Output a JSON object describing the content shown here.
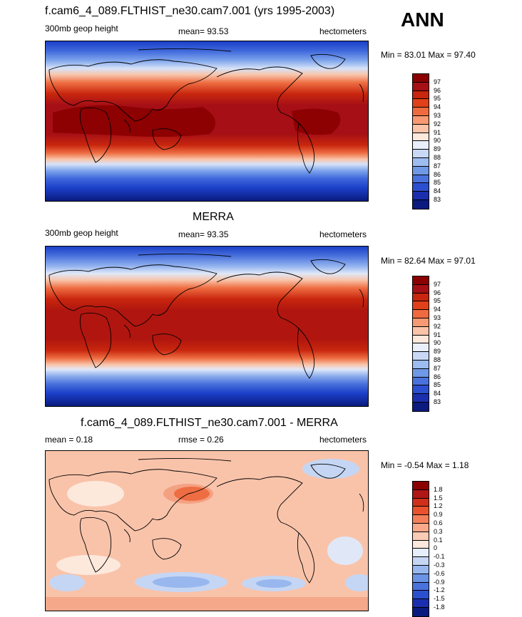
{
  "ann_label": "ANN",
  "panels": [
    {
      "title": "f.cam6_4_089.FLTHIST_ne30.cam7.001 (yrs 1995-2003)",
      "left_label": "300mb geop height",
      "center_label": "mean=  93.53",
      "right_label": "hectometers",
      "minmax": "Min =  83.01 Max =  97.40"
    },
    {
      "title": "MERRA",
      "left_label": "300mb geop height",
      "center_label": "mean=  93.35",
      "right_label": "hectometers",
      "minmax": "Min =  82.64 Max =  97.01"
    },
    {
      "title": "f.cam6_4_089.FLTHIST_ne30.cam7.001 - MERRA",
      "left_label": "mean =   0.18",
      "center_label": "rmse =   0.26",
      "right_label": "hectometers",
      "minmax": "Min =  -0.54 Max =   1.18"
    }
  ],
  "chart_data": [
    {
      "type": "heatmap",
      "title": "f.cam6_4_089.FLTHIST_ne30.cam7.001 (yrs 1995-2003)",
      "variable": "300mb geop height",
      "units": "hectometers",
      "mean": 93.53,
      "min": 83.01,
      "max": 97.4,
      "colorbar_levels": [
        "97",
        "96",
        "95",
        "94",
        "93",
        "92",
        "91",
        "90",
        "89",
        "88",
        "87",
        "86",
        "85",
        "84",
        "83"
      ],
      "colorbar_colors": [
        "#8b0000",
        "#a50f15",
        "#c8260e",
        "#e0401a",
        "#f06a3f",
        "#f79972",
        "#fbc3a8",
        "#fde8dc",
        "#eaf0fb",
        "#c8d8f5",
        "#9dbcef",
        "#6f98e6",
        "#4a72dc",
        "#2c4fcf",
        "#1b2fae",
        "#0a1a7e"
      ]
    },
    {
      "type": "heatmap",
      "title": "MERRA",
      "variable": "300mb geop height",
      "units": "hectometers",
      "mean": 93.35,
      "min": 82.64,
      "max": 97.01,
      "colorbar_levels": [
        "97",
        "96",
        "95",
        "94",
        "93",
        "92",
        "91",
        "90",
        "89",
        "88",
        "87",
        "86",
        "85",
        "84",
        "83"
      ],
      "colorbar_colors": [
        "#8b0000",
        "#a50f15",
        "#c8260e",
        "#e0401a",
        "#f06a3f",
        "#f79972",
        "#fbc3a8",
        "#fde8dc",
        "#eaf0fb",
        "#c8d8f5",
        "#9dbcef",
        "#6f98e6",
        "#4a72dc",
        "#2c4fcf",
        "#1b2fae",
        "#0a1a7e"
      ]
    },
    {
      "type": "heatmap",
      "title": "f.cam6_4_089.FLTHIST_ne30.cam7.001 - MERRA",
      "units": "hectometers",
      "mean": 0.18,
      "rmse": 0.26,
      "min": -0.54,
      "max": 1.18,
      "colorbar_levels": [
        "1.8",
        "1.5",
        "1.2",
        "0.9",
        "0.6",
        "0.3",
        "0.1",
        "0",
        "-0.1",
        "-0.3",
        "-0.6",
        "-0.9",
        "-1.2",
        "-1.5",
        "-1.8"
      ],
      "colorbar_colors": [
        "#8b0000",
        "#b01616",
        "#d0301a",
        "#e8532d",
        "#f4805a",
        "#f9a98a",
        "#fccbb6",
        "#fde8dc",
        "#e6eefb",
        "#c5d6f4",
        "#98b7ee",
        "#6a93e5",
        "#4a72dc",
        "#2c4fcf",
        "#1b2fae",
        "#0a1a7e"
      ]
    }
  ]
}
